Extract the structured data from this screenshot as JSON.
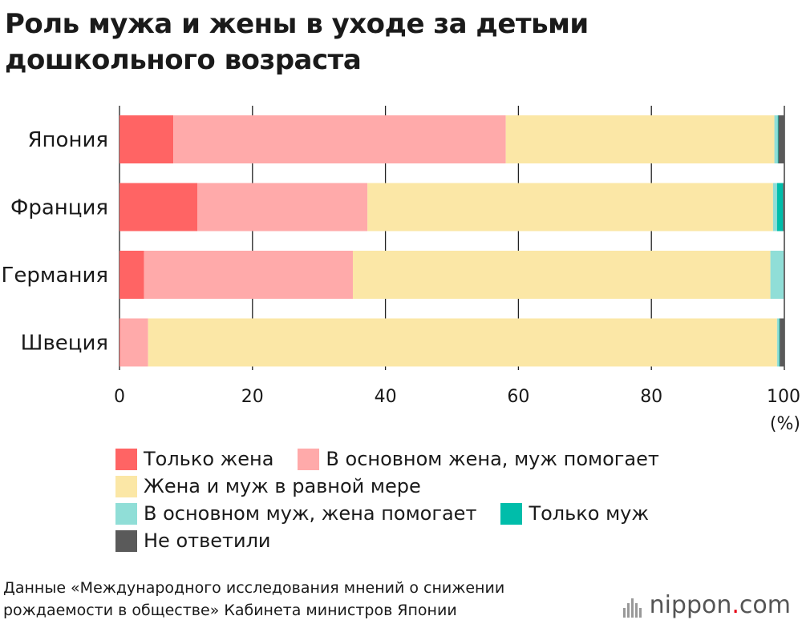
{
  "title_line1": "Роль мужа и жены в уходе за детьми",
  "title_line2": "дошкольного возраста",
  "chart_data": {
    "type": "bar",
    "orientation": "horizontal",
    "stacked": true,
    "title": "Роль мужа и жены в уходе за детьми дошкольного возраста",
    "categories": [
      "Япония",
      "Франция",
      "Германия",
      "Швеция"
    ],
    "series": [
      {
        "name": "Только жена",
        "color": "#ff6464",
        "values": [
          8.1,
          11.7,
          3.7,
          0.1
        ]
      },
      {
        "name": "В основном жена, муж помогает",
        "color": "#ffaaaa",
        "values": [
          50.0,
          25.6,
          31.4,
          4.2
        ]
      },
      {
        "name": "Жена и муж в равной мере",
        "color": "#fbe7a6",
        "values": [
          40.4,
          61.0,
          62.8,
          94.6
        ]
      },
      {
        "name": "В основном муж, жена помогает",
        "color": "#90ded7",
        "values": [
          0.5,
          0.6,
          2.0,
          0.3
        ]
      },
      {
        "name": "Только муж",
        "color": "#00bdaa",
        "values": [
          0.1,
          0.9,
          0.0,
          0.1
        ]
      },
      {
        "name": "Не ответили",
        "color": "#5a5a5a",
        "values": [
          0.9,
          0.2,
          0.1,
          0.7
        ]
      }
    ],
    "xlim": [
      0,
      100
    ],
    "xticks": [
      0,
      20,
      40,
      60,
      80,
      100
    ],
    "xtick_labels": [
      "0",
      "20",
      "40",
      "60",
      "80",
      "100"
    ],
    "xunit": "(%)",
    "grid": true
  },
  "source": "Данные «Международного исследования мнений о снижении рождаемости в обществе» Кабинета министров Японии",
  "logo": {
    "name": "nippon",
    "dot": ".",
    "suffix": "com"
  }
}
